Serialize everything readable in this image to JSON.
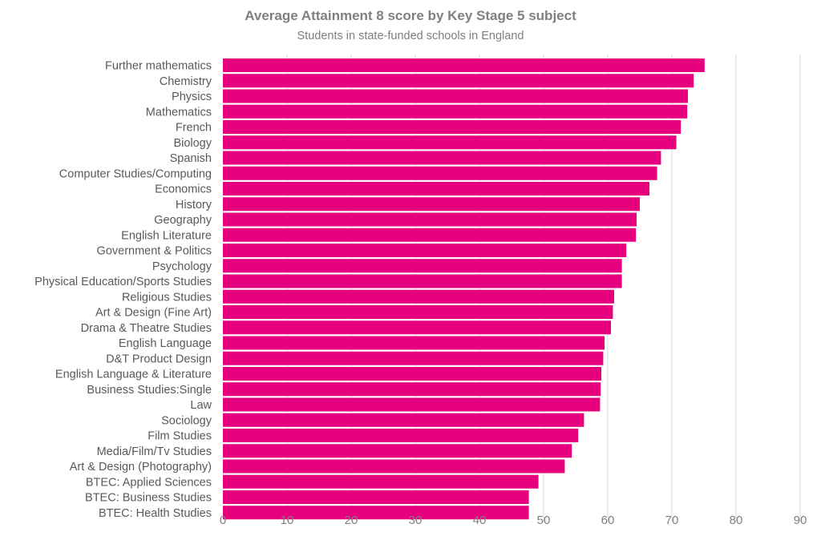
{
  "chart_data": {
    "type": "bar",
    "orientation": "horizontal",
    "title": "Average Attainment 8 score by Key Stage 5 subject",
    "subtitle": "Students in state-funded schools in England",
    "xlabel": "",
    "ylabel": "",
    "xlim": [
      0,
      90
    ],
    "xticks": [
      0,
      10,
      20,
      30,
      40,
      50,
      60,
      70,
      80,
      90
    ],
    "grid": true,
    "bar_color": "#e6007e",
    "categories": [
      "Further mathematics",
      "Chemistry",
      "Physics",
      "Mathematics",
      "French",
      "Biology",
      "Spanish",
      "Computer Studies/Computing",
      "Economics",
      "History",
      "Geography",
      "English Literature",
      "Government & Politics",
      "Psychology",
      "Physical Education/Sports Studies",
      "Religious Studies",
      "Art & Design (Fine Art)",
      "Drama & Theatre Studies",
      "English Language",
      "D&T Product Design",
      "English Language & Literature",
      "Business Studies:Single",
      "Law",
      "Sociology",
      "Film Studies",
      "Media/Film/Tv Studies",
      "Art & Design (Photography)",
      "BTEC: Applied Sciences",
      "BTEC: Business Studies",
      "BTEC: Health Studies"
    ],
    "values": [
      75.1,
      73.4,
      72.5,
      72.4,
      71.4,
      70.7,
      68.3,
      67.7,
      66.5,
      65.0,
      64.5,
      64.4,
      62.9,
      62.2,
      62.2,
      61.0,
      60.8,
      60.5,
      59.5,
      59.3,
      59.0,
      58.9,
      58.8,
      56.3,
      55.4,
      54.4,
      53.3,
      49.2,
      47.7,
      47.7
    ]
  }
}
